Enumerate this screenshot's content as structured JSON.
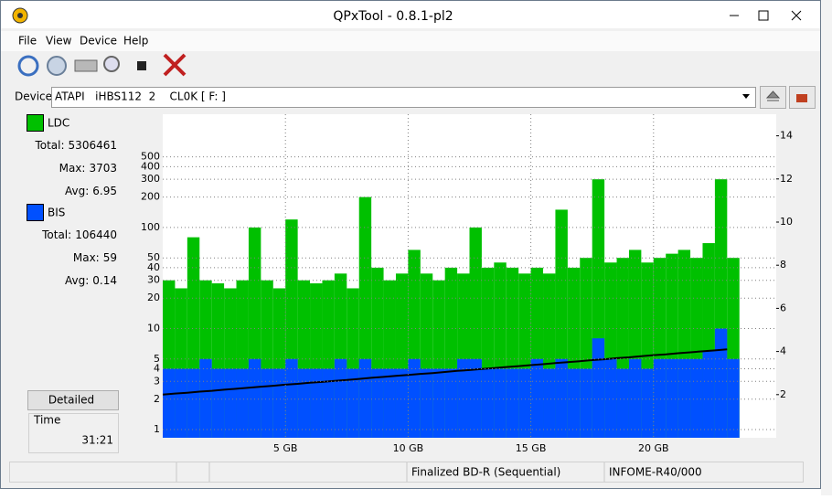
{
  "window": {
    "title": "QPxTool - 0.8.1-pl2"
  },
  "menu": [
    "File",
    "View",
    "Device",
    "Help"
  ],
  "device": {
    "label": "Device:",
    "value": "ATAPI   iHBS112  2    CL0K [ F: ]"
  },
  "stats": {
    "ldc": {
      "total_label": "Total:",
      "total": 5306461,
      "max_label": "Max:",
      "max": 3703,
      "avg_label": "Avg:",
      "avg": 6.95
    },
    "bis": {
      "total_label": "Total:",
      "total": 106440,
      "max_label": "Max:",
      "max": 59,
      "avg_label": "Avg:",
      "avg": 0.14
    }
  },
  "button": "Detailed",
  "time": {
    "label": "Time",
    "value": "31:21"
  },
  "status": [
    "Finalized BD-R (Sequential)",
    "INFOME-R40/000"
  ],
  "chart_data": {
    "type": "bar",
    "log_scale": true,
    "grid": true,
    "x": [
      0,
      0.5,
      1,
      1.5,
      2,
      2.5,
      3,
      3.5,
      4,
      4.5,
      5,
      5.5,
      6,
      6.5,
      7,
      7.5,
      8,
      8.5,
      9,
      9.5,
      10,
      10.5,
      11,
      11.5,
      12,
      12.5,
      13,
      13.5,
      14,
      14.5,
      15,
      15.5,
      16,
      16.5,
      17,
      17.5,
      18,
      18.5,
      19,
      19.5,
      20,
      20.5,
      21,
      21.5,
      22,
      22.5,
      23
    ],
    "series": [
      {
        "name": "LDC",
        "color": "#00c000",
        "values": [
          30,
          25,
          80,
          30,
          28,
          25,
          30,
          100,
          30,
          25,
          120,
          30,
          28,
          30,
          35,
          25,
          200,
          40,
          30,
          35,
          60,
          35,
          30,
          40,
          35,
          100,
          40,
          45,
          40,
          35,
          40,
          35,
          150,
          40,
          50,
          300,
          45,
          50,
          60,
          45,
          50,
          55,
          60,
          50,
          70,
          300,
          50
        ]
      },
      {
        "name": "BIS",
        "color": "#0050ff",
        "values": [
          4,
          4,
          4,
          5,
          4,
          4,
          4,
          5,
          4,
          4,
          5,
          4,
          4,
          4,
          5,
          4,
          5,
          4,
          4,
          4,
          5,
          4,
          4,
          4,
          5,
          5,
          4,
          4,
          4,
          4,
          5,
          4,
          5,
          4,
          4,
          8,
          5,
          4,
          5,
          4,
          5,
          5,
          5,
          5,
          6,
          10,
          5
        ]
      },
      {
        "color": "#000000",
        "axis": "y2",
        "values": [
          2.0,
          2.05,
          2.09,
          2.14,
          2.18,
          2.23,
          2.27,
          2.32,
          2.37,
          2.41,
          2.46,
          2.5,
          2.55,
          2.59,
          2.64,
          2.68,
          2.73,
          2.78,
          2.82,
          2.87,
          2.91,
          2.96,
          3.0,
          3.05,
          3.1,
          3.14,
          3.19,
          3.23,
          3.28,
          3.32,
          3.37,
          3.41,
          3.46,
          3.51,
          3.55,
          3.6,
          3.64,
          3.69,
          3.73,
          3.78,
          3.83,
          3.87,
          3.92,
          3.96,
          4.01,
          4.05,
          4.1
        ]
      }
    ],
    "xlim": [
      0,
      25
    ],
    "xticks": [
      {
        "value": 5,
        "label": "5 GB"
      },
      {
        "value": 10,
        "label": "10 GB"
      },
      {
        "value": 15,
        "label": "15 GB"
      },
      {
        "value": 20,
        "label": "20 GB"
      }
    ],
    "ylim": [
      0.83,
      1320
    ],
    "yticks": [
      1,
      2,
      3,
      4,
      5,
      10,
      20,
      30,
      40,
      50,
      100,
      200,
      300,
      400,
      500
    ],
    "y2lim": [
      0,
      15
    ],
    "y2ticks": [
      2,
      4,
      6,
      8,
      10,
      12,
      14
    ]
  }
}
